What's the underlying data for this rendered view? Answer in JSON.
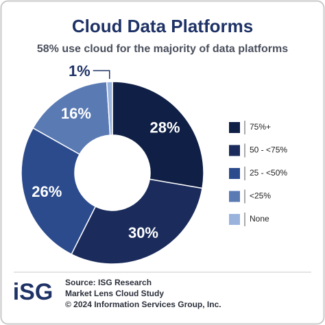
{
  "chart_data": {
    "type": "pie",
    "title": "Cloud Data Platforms",
    "subtitle": "58% use cloud for the majority of data platforms",
    "categories": [
      "75%+",
      "50 - <75%",
      "25 - <50%",
      "<25%",
      "None"
    ],
    "values": [
      28,
      30,
      26,
      16,
      1
    ],
    "value_labels": [
      "28%",
      "30%",
      "26%",
      "16%",
      "1%"
    ],
    "colors": [
      "#0f1f45",
      "#1b2c5c",
      "#2c4b8d",
      "#5a7ab4",
      "#9ab3dd"
    ],
    "donut": true,
    "legend": "right"
  },
  "footer": {
    "logo": "iSG",
    "lines": [
      "Source: ISG Research",
      "Market Lens Cloud Study",
      "© 2024 Information Services Group, Inc."
    ]
  }
}
